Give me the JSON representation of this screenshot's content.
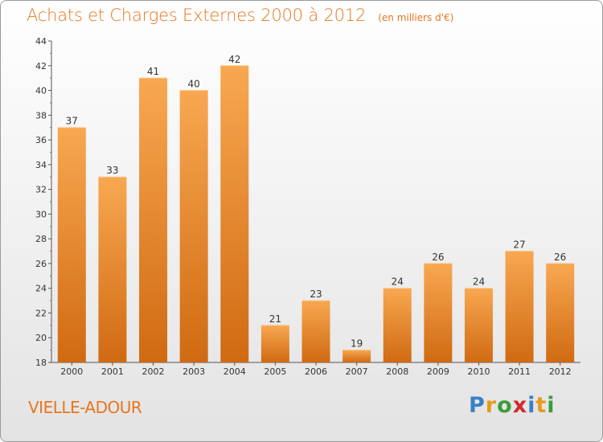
{
  "header": {
    "title": "Achats et Charges Externes 2000 à 2012",
    "subtitle": "(en milliers d'€)"
  },
  "footer": {
    "commune": "VIELLE-ADOUR",
    "logo_letters": [
      "P",
      "r",
      "o",
      "x",
      "i",
      "t",
      "i"
    ],
    "logo_colors": [
      "#3a7fc6",
      "#e89a1c",
      "#3a9d3a",
      "#d22a2a",
      "#3a7fc6",
      "#e89a1c",
      "#3a9d3a"
    ]
  },
  "colors": {
    "bar_light": "#f8a851",
    "bar_dark": "#d06a12",
    "text": "#333333",
    "accent": "#e8761e"
  },
  "chart_data": {
    "type": "bar",
    "title": "Achats et Charges Externes 2000 à 2012",
    "categories": [
      "2000",
      "2001",
      "2002",
      "2003",
      "2004",
      "2005",
      "2006",
      "2007",
      "2008",
      "2009",
      "2010",
      "2011",
      "2012"
    ],
    "values": [
      37,
      33,
      41,
      40,
      42,
      21,
      23,
      19,
      24,
      26,
      24,
      27,
      26
    ],
    "ylim": [
      18,
      44
    ],
    "yticks": [
      18,
      20,
      22,
      24,
      26,
      28,
      30,
      32,
      34,
      36,
      38,
      40,
      42,
      44
    ],
    "grid": false,
    "xlabel": "",
    "ylabel": ""
  }
}
